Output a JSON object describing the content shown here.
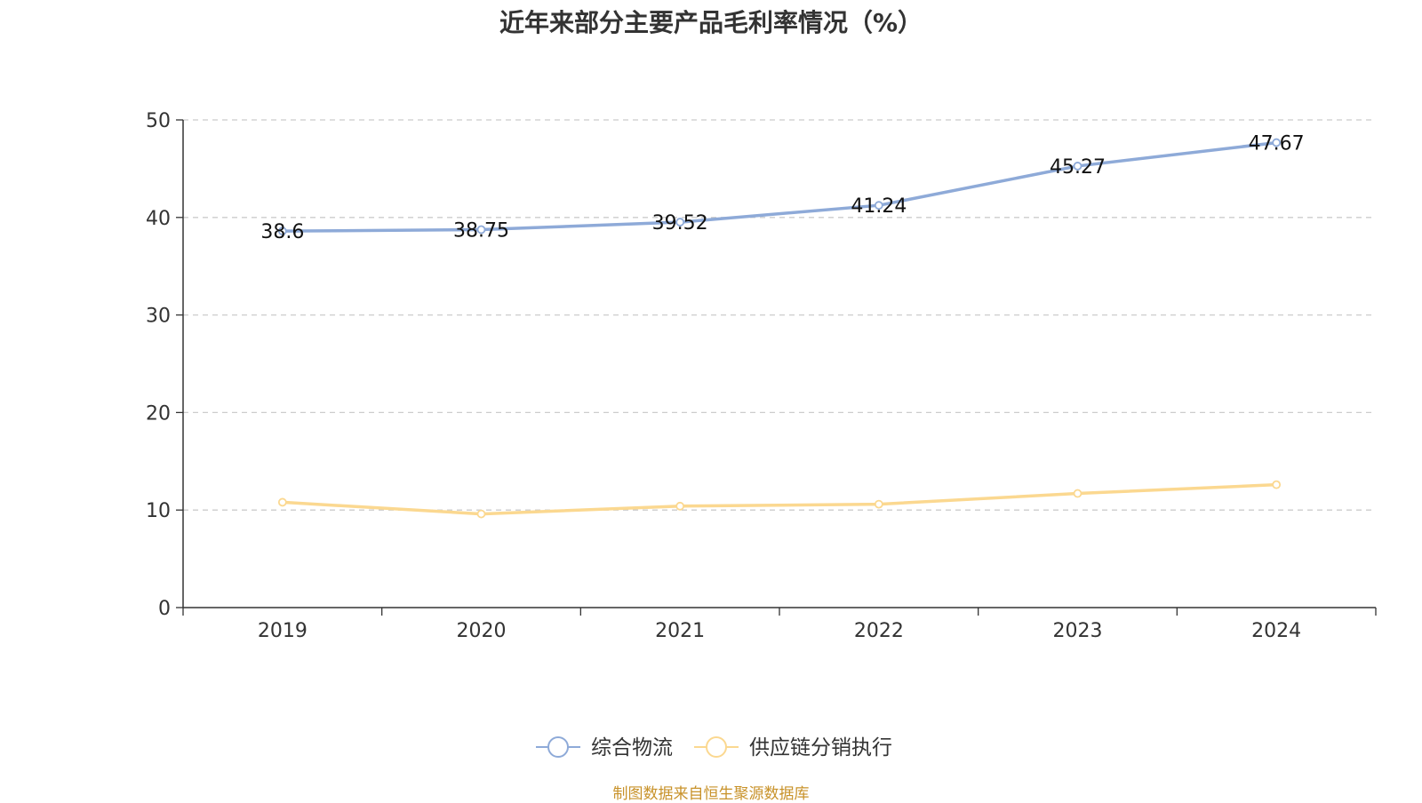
{
  "chart_data": {
    "type": "line",
    "title": "近年来部分主要产品毛利率情况（%）",
    "categories": [
      "2019",
      "2020",
      "2021",
      "2022",
      "2023",
      "2024"
    ],
    "ylim": [
      0,
      50
    ],
    "yticks": [
      "0",
      "10",
      "20",
      "30",
      "40",
      "50"
    ],
    "grid": true,
    "legend_position": "bottom-center",
    "series": [
      {
        "name": "综合物流",
        "color": "#8eaad8",
        "values": [
          38.6,
          38.75,
          39.52,
          41.24,
          45.27,
          47.67
        ],
        "labels": [
          "38.6",
          "38.75",
          "39.52",
          "41.24",
          "45.27",
          "47.67"
        ]
      },
      {
        "name": "供应链分销执行",
        "color": "#fbd890",
        "values": [
          10.8,
          9.6,
          10.4,
          10.6,
          11.7,
          12.6
        ],
        "labels": []
      }
    ]
  },
  "footer": {
    "source": "制图数据来自恒生聚源数据库"
  }
}
